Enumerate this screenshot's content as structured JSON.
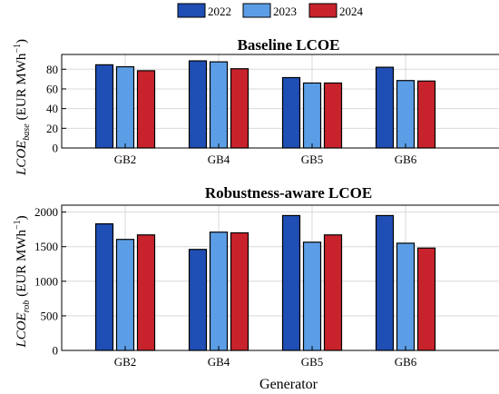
{
  "legend": [
    {
      "label": "2022",
      "color": "#1f4eb4"
    },
    {
      "label": "2023",
      "color": "#5c9ee6"
    },
    {
      "label": "2024",
      "color": "#c8232c"
    }
  ],
  "xlabel": "Generator",
  "chart_data": [
    {
      "type": "bar",
      "title": "Baseline LCOE",
      "ylabel_main": "LCOE",
      "ylabel_sub": "base",
      "ylabel_unit": "(EUR MWh",
      "ylabel_sup": "−1",
      "ylabel_close": ")",
      "categories": [
        "GB2",
        "GB4",
        "GB5",
        "GB6"
      ],
      "ylim": [
        0,
        95
      ],
      "yticks": [
        0,
        20,
        40,
        60,
        80
      ],
      "ytick_labels": [
        "0",
        "20",
        "40",
        "60",
        "80"
      ],
      "grid": true,
      "series": [
        {
          "name": "2022",
          "values": [
            84.5,
            88.5,
            71.5,
            82.0
          ]
        },
        {
          "name": "2023",
          "values": [
            82.5,
            87.5,
            66.0,
            68.5
          ]
        },
        {
          "name": "2024",
          "values": [
            78.5,
            80.5,
            66.0,
            68.0
          ]
        }
      ]
    },
    {
      "type": "bar",
      "title": "Robustness-aware LCOE",
      "ylabel_main": "LCOE",
      "ylabel_sub": "rob",
      "ylabel_unit": "(EUR MWh",
      "ylabel_sup": "−1",
      "ylabel_close": ")",
      "categories": [
        "GB2",
        "GB4",
        "GB5",
        "GB6"
      ],
      "ylim": [
        0,
        2100
      ],
      "yticks": [
        0,
        500,
        1000,
        1500,
        2000
      ],
      "ytick_labels": [
        "0",
        "500",
        "1000",
        "1500",
        "2000"
      ],
      "grid": true,
      "series": [
        {
          "name": "2022",
          "values": [
            1830,
            1460,
            1950,
            1950
          ]
        },
        {
          "name": "2023",
          "values": [
            1605,
            1710,
            1565,
            1550
          ]
        },
        {
          "name": "2024",
          "values": [
            1670,
            1700,
            1670,
            1480
          ]
        }
      ]
    }
  ]
}
